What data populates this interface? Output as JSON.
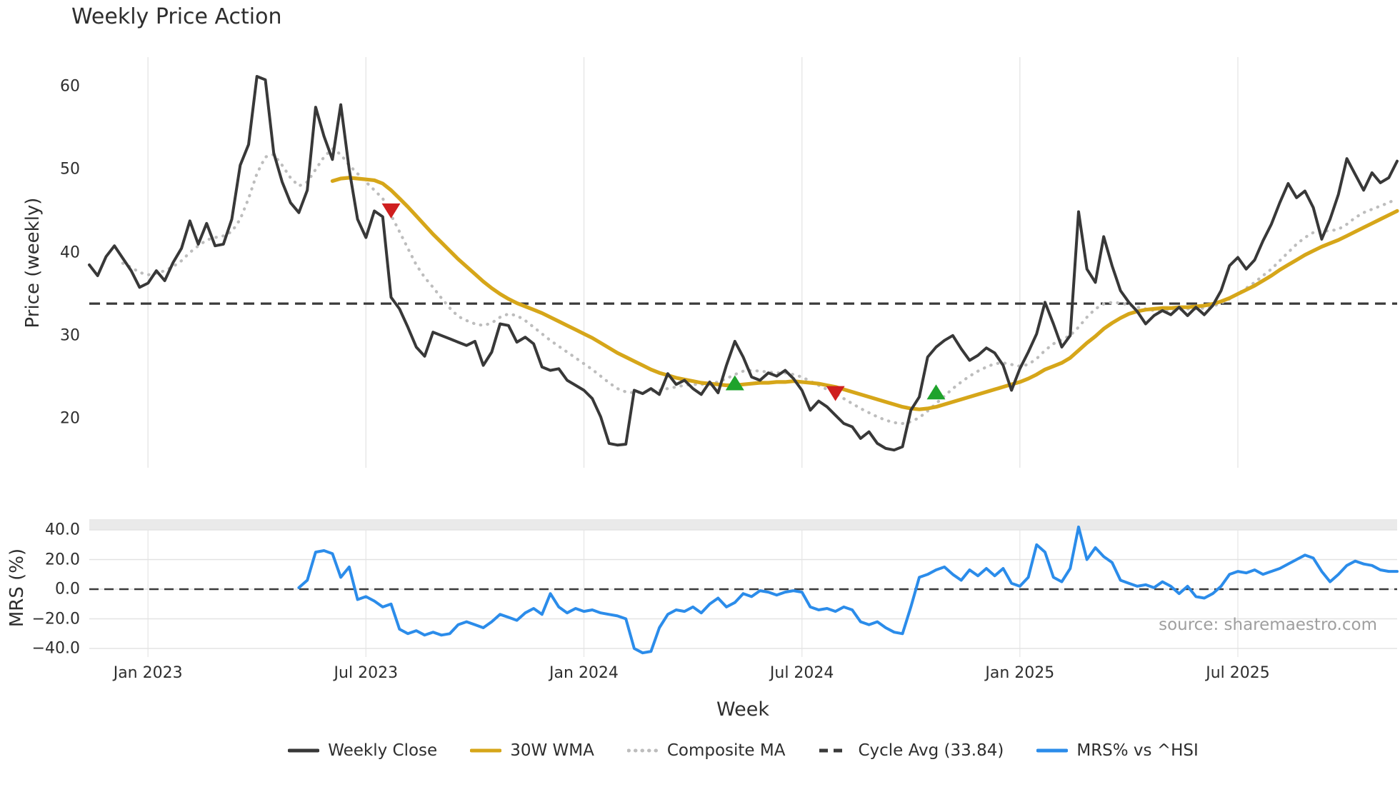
{
  "title": "Weekly Price Action",
  "xlabel": "Week",
  "price_panel": {
    "ylabel": "Price (weekly)",
    "yticks": [
      {
        "label": "60",
        "value": 60
      },
      {
        "label": "50",
        "value": 50
      },
      {
        "label": "40",
        "value": 40
      },
      {
        "label": "30",
        "value": 30
      },
      {
        "label": "20",
        "value": 20
      }
    ],
    "cycle_avg_value": 33.84
  },
  "mrs_panel": {
    "ylabel": "MRS (%)",
    "yticks": [
      {
        "label": "40.0",
        "value": 40
      },
      {
        "label": "20.0",
        "value": 20
      },
      {
        "label": "0.0",
        "value": 0
      },
      {
        "label": "−20.0",
        "value": -20
      },
      {
        "label": "−40.0",
        "value": -40
      }
    ],
    "source_text": "source: sharemaestro.com"
  },
  "x_ticks": [
    {
      "label": "Jan 2023",
      "week": 7
    },
    {
      "label": "Jul 2023",
      "week": 33
    },
    {
      "label": "Jan 2024",
      "week": 59
    },
    {
      "label": "Jul 2024",
      "week": 85
    },
    {
      "label": "Jan 2025",
      "week": 111
    },
    {
      "label": "Jul 2025",
      "week": 137
    }
  ],
  "legend": {
    "items": [
      {
        "label": "Weekly Close",
        "swatch": "solid",
        "color": "#383838"
      },
      {
        "label": "30W WMA",
        "swatch": "solid",
        "color": "#d6a619"
      },
      {
        "label": "Composite MA",
        "swatch": "dotted",
        "color": "#bdbdbd"
      },
      {
        "label": "Cycle Avg (33.84)",
        "swatch": "dashed",
        "color": "#3a3a3a"
      },
      {
        "label": "MRS% vs ^HSI",
        "swatch": "solid",
        "color": "#2b8cea"
      }
    ]
  },
  "colors": {
    "weekly_close": "#383838",
    "wma": "#d6a619",
    "composite": "#bdbdbd",
    "cycle_avg": "#3a3a3a",
    "mrs": "#2b8cea",
    "zero_line": "#3a3a3a",
    "buy": "#1fa32c",
    "sell": "#cf1f1f",
    "grid": "#e9e9e9",
    "mrs_grid": "#e3e3e3",
    "band": "#eaeaea"
  },
  "chart_data": {
    "type": "line",
    "x_unit": "week_index",
    "x_range": [
      0,
      156
    ],
    "panels": [
      {
        "name": "price",
        "ylabel": "Price (weekly)",
        "ylim": [
          14,
          63
        ],
        "grid": "vertical-only",
        "series": [
          {
            "name": "Weekly Close",
            "start_week": 0,
            "values": [
              38.5,
              37.2,
              39.5,
              40.8,
              39.3,
              37.8,
              35.8,
              36.3,
              37.8,
              36.6,
              38.8,
              40.5,
              43.8,
              41.0,
              43.5,
              40.8,
              41.0,
              44.0,
              50.5,
              53.0,
              61.2,
              60.8,
              52.0,
              48.5,
              46.0,
              44.8,
              47.5,
              57.5,
              54.0,
              51.2,
              57.8,
              50.0,
              44.0,
              41.8,
              45.0,
              44.3,
              34.6,
              33.2,
              31.0,
              28.6,
              27.5,
              30.4,
              30.0,
              29.6,
              29.2,
              28.8,
              29.3,
              26.4,
              28.0,
              31.4,
              31.2,
              29.2,
              29.8,
              29.0,
              26.2,
              25.8,
              26.0,
              24.6,
              24.0,
              23.4,
              22.4,
              20.2,
              17.0,
              16.8,
              16.9,
              23.4,
              23.0,
              23.6,
              22.9,
              25.4,
              24.1,
              24.6,
              23.6,
              22.9,
              24.4,
              23.1,
              26.4,
              29.3,
              27.4,
              25.0,
              24.6,
              25.5,
              25.1,
              25.8,
              24.8,
              23.4,
              21.0,
              22.1,
              21.4,
              20.4,
              19.4,
              19.0,
              17.6,
              18.4,
              17.0,
              16.4,
              16.2,
              16.6,
              21.0,
              22.6,
              27.4,
              28.6,
              29.4,
              30.0,
              28.4,
              27.0,
              27.6,
              28.5,
              27.9,
              26.4,
              23.4,
              26.0,
              28.0,
              30.2,
              34.0,
              31.4,
              28.6,
              30.0,
              44.9,
              38.0,
              36.4,
              41.9,
              38.4,
              35.4,
              34.0,
              32.9,
              31.4,
              32.4,
              33.0,
              32.5,
              33.4,
              32.4,
              33.4,
              32.5,
              33.6,
              35.4,
              38.4,
              39.4,
              38.0,
              39.1,
              41.4,
              43.4,
              46.0,
              48.3,
              46.6,
              47.4,
              45.4,
              41.6,
              44.0,
              47.0,
              51.3,
              49.4,
              47.5,
              49.6,
              48.4,
              49.0,
              51.0
            ]
          },
          {
            "name": "30W WMA",
            "start_week": 29,
            "values": [
              48.6,
              48.9,
              49.0,
              48.9,
              48.8,
              48.7,
              48.3,
              47.5,
              46.5,
              45.5,
              44.4,
              43.3,
              42.2,
              41.2,
              40.2,
              39.2,
              38.3,
              37.4,
              36.5,
              35.7,
              35.0,
              34.4,
              33.9,
              33.5,
              33.1,
              32.7,
              32.2,
              31.7,
              31.2,
              30.7,
              30.2,
              29.7,
              29.1,
              28.5,
              27.9,
              27.4,
              26.9,
              26.4,
              25.9,
              25.5,
              25.2,
              24.9,
              24.7,
              24.5,
              24.3,
              24.2,
              24.1,
              24.0,
              24.0,
              24.1,
              24.2,
              24.3,
              24.3,
              24.4,
              24.4,
              24.5,
              24.4,
              24.3,
              24.2,
              24.0,
              23.8,
              23.5,
              23.2,
              22.9,
              22.6,
              22.3,
              22.0,
              21.7,
              21.4,
              21.2,
              21.1,
              21.2,
              21.4,
              21.7,
              22.0,
              22.3,
              22.6,
              22.9,
              23.2,
              23.5,
              23.8,
              24.1,
              24.4,
              24.8,
              25.3,
              25.9,
              26.3,
              26.7,
              27.3,
              28.2,
              29.1,
              29.9,
              30.8,
              31.5,
              32.1,
              32.6,
              32.9,
              33.1,
              33.2,
              33.3,
              33.3,
              33.4,
              33.4,
              33.5,
              33.6,
              33.8,
              34.1,
              34.5,
              35.0,
              35.5,
              36.0,
              36.6,
              37.2,
              37.9,
              38.5,
              39.1,
              39.7,
              40.2,
              40.7,
              41.1,
              41.5,
              42.0,
              42.5,
              43.0,
              43.5,
              44.0,
              44.5,
              45.0
            ]
          },
          {
            "name": "Composite MA",
            "start_week": 4,
            "values": [
              38.7,
              38.2,
              37.6,
              37.3,
              37.5,
              37.8,
              38.3,
              39.0,
              40.0,
              40.8,
              41.5,
              41.8,
              42.0,
              42.5,
              44.0,
              46.5,
              49.5,
              51.5,
              51.8,
              50.5,
              49.0,
              48.0,
              48.5,
              50.0,
              51.5,
              52.5,
              51.8,
              50.5,
              49.5,
              48.5,
              47.5,
              46.5,
              44.5,
              42.5,
              40.5,
              38.5,
              37.0,
              35.8,
              34.5,
              33.3,
              32.3,
              31.8,
              31.4,
              31.2,
              31.5,
              32.2,
              32.6,
              32.4,
              31.8,
              31.0,
              30.2,
              29.4,
              28.7,
              28.0,
              27.3,
              26.6,
              25.9,
              25.1,
              24.3,
              23.6,
              23.2,
              23.1,
              23.2,
              23.3,
              23.4,
              23.6,
              23.8,
              24.0,
              24.1,
              24.1,
              24.2,
              24.4,
              24.8,
              25.3,
              25.7,
              25.8,
              25.7,
              25.6,
              25.5,
              25.5,
              25.3,
              25.0,
              24.5,
              24.0,
              23.5,
              23.0,
              22.4,
              21.8,
              21.2,
              20.7,
              20.2,
              19.8,
              19.5,
              19.4,
              19.6,
              20.1,
              20.9,
              21.8,
              22.7,
              23.6,
              24.4,
              25.1,
              25.7,
              26.2,
              26.6,
              26.7,
              26.5,
              26.3,
              26.5,
              27.2,
              28.2,
              29.0,
              29.5,
              30.0,
              31.0,
              32.2,
              33.2,
              33.8,
              34.0,
              33.9,
              33.7,
              33.4,
              33.2,
              33.0,
              33.0,
              33.0,
              33.1,
              33.2,
              33.2,
              33.3,
              33.5,
              33.9,
              34.4,
              35.0,
              35.7,
              36.4,
              37.2,
              38.0,
              39.0,
              40.0,
              41.0,
              41.8,
              42.4,
              42.6,
              42.6,
              42.8,
              43.4,
              44.2,
              44.8,
              45.2,
              45.6,
              46.0,
              46.5
            ]
          },
          {
            "name": "Cycle Avg",
            "constant": 33.84
          }
        ],
        "signals": [
          {
            "type": "sell",
            "week": 36,
            "price": 45.0
          },
          {
            "type": "buy",
            "week": 77,
            "price": 24.3
          },
          {
            "type": "sell",
            "week": 89,
            "price": 23.0
          },
          {
            "type": "buy",
            "week": 101,
            "price": 23.2
          }
        ]
      },
      {
        "name": "mrs",
        "ylabel": "MRS (%)",
        "ylim": [
          -47,
          46
        ],
        "series": [
          {
            "name": "MRS% vs ^HSI",
            "start_week": 25,
            "values": [
              1,
              6,
              25,
              26,
              24,
              8,
              15,
              -7,
              -5,
              -8,
              -12,
              -10,
              -27,
              -30,
              -28,
              -31,
              -29,
              -31,
              -30,
              -24,
              -22,
              -24,
              -26,
              -22,
              -17,
              -19,
              -21,
              -16,
              -13,
              -17,
              -3,
              -12,
              -16,
              -13,
              -15,
              -14,
              -16,
              -17,
              -18,
              -20,
              -40,
              -43,
              -42,
              -26,
              -17,
              -14,
              -15,
              -12,
              -16,
              -10,
              -6,
              -12,
              -9,
              -3,
              -5,
              -1,
              -2,
              -4,
              -2,
              -1,
              -2,
              -12,
              -14,
              -13,
              -15,
              -12,
              -14,
              -22,
              -24,
              -22,
              -26,
              -29,
              -30,
              -12,
              8,
              10,
              13,
              15,
              10,
              6,
              13,
              9,
              14,
              9,
              14,
              4,
              2,
              8,
              30,
              25,
              8,
              5,
              14,
              42,
              20,
              28,
              22,
              18,
              6,
              4,
              2,
              3,
              1,
              5,
              2,
              -3,
              2,
              -5,
              -6,
              -3,
              2,
              10,
              12,
              11,
              13,
              10,
              12,
              14,
              17,
              20,
              23,
              21,
              12,
              5,
              10,
              16,
              19,
              17,
              16,
              13,
              12,
              12
            ]
          },
          {
            "name": "Zero Line",
            "constant": 0
          }
        ]
      }
    ]
  }
}
